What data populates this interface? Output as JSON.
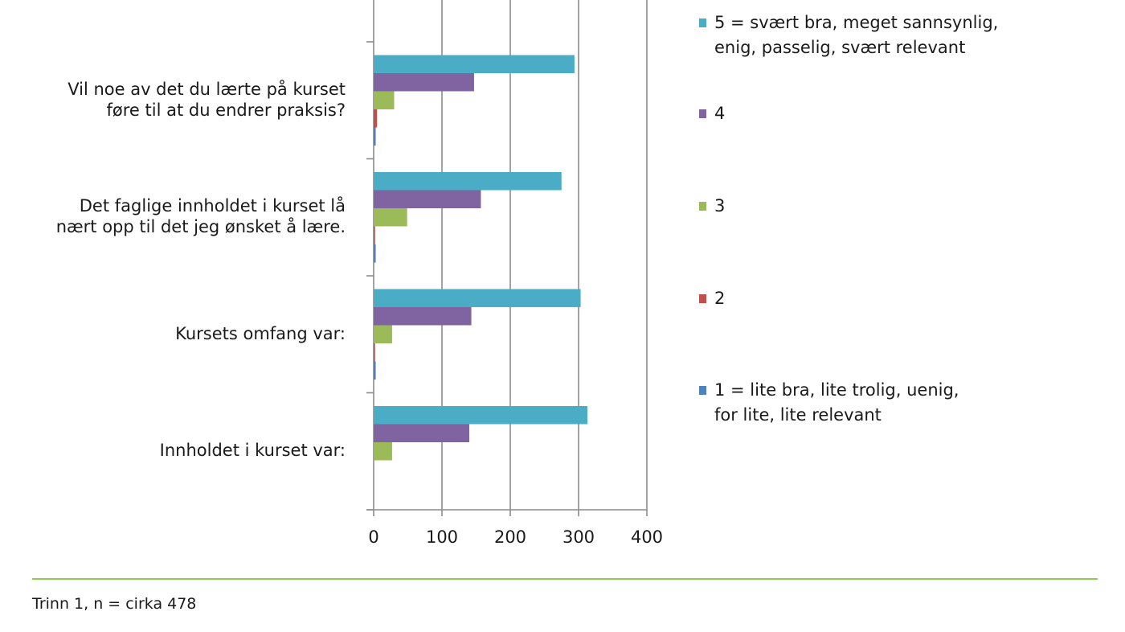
{
  "chart_data": {
    "type": "bar",
    "orientation": "horizontal",
    "categories": [
      "Innholdet i kurset var:",
      "Kursets omfang var:",
      "Det faglige innholdet i kurset lå\nnært opp til det jeg ønsket å lære.",
      "Vil noe av det du lærte på kurset\nføre til at du endrer praksis?",
      ""
    ],
    "series": [
      {
        "name": "1 = lite bra, lite trolig, uenig,\nfor lite, lite relevant",
        "color": "#4f81bd",
        "values": [
          0,
          3,
          3,
          3,
          null
        ]
      },
      {
        "name": "2",
        "color": "#c0504d",
        "values": [
          0,
          2,
          2,
          5,
          null
        ]
      },
      {
        "name": "3",
        "color": "#9bbb59",
        "values": [
          27,
          27,
          49,
          30,
          null
        ]
      },
      {
        "name": "4",
        "color": "#8064a2",
        "values": [
          140,
          143,
          157,
          147,
          null
        ]
      },
      {
        "name": "5 = svært bra, meget sannsynlig,\nenig, passelig, svært relevant",
        "color": "#4bacc6",
        "values": [
          313,
          303,
          275,
          294,
          null
        ]
      }
    ],
    "xlim": [
      0,
      400
    ],
    "xticks": [
      "0",
      "100",
      "200",
      "300",
      "400"
    ],
    "grid": true,
    "legend_position": "right"
  },
  "footnote": "Trinn 1, n = cirka 478"
}
